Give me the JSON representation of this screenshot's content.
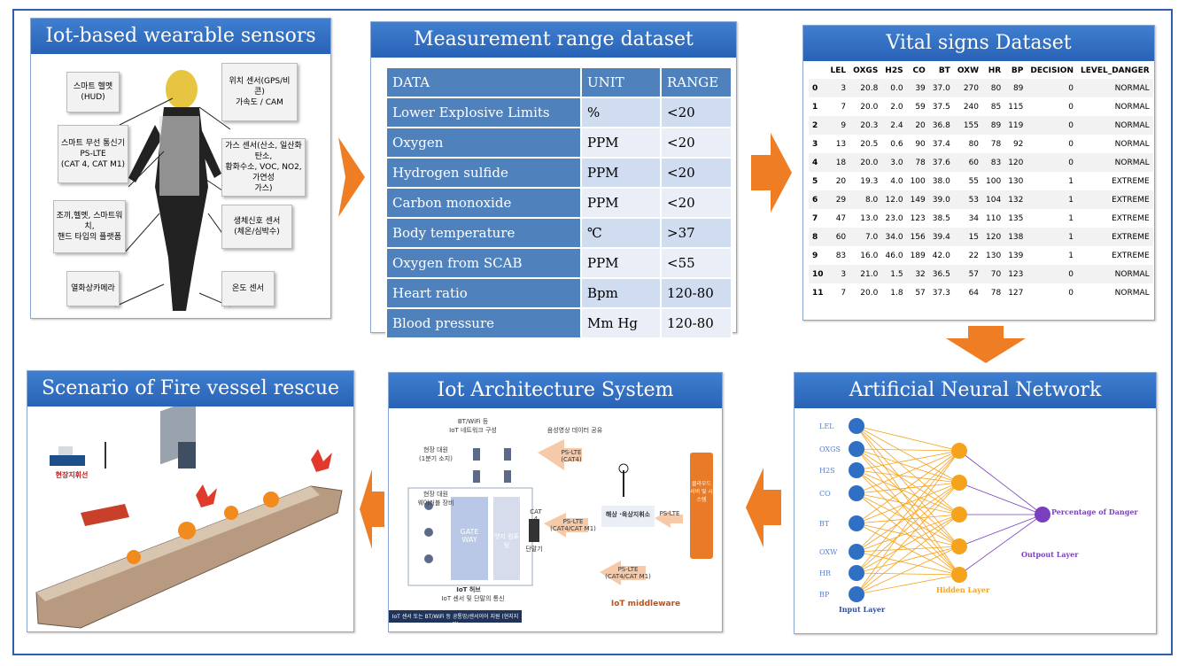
{
  "panels": {
    "wearable": {
      "title": "Iot-based wearable sensors",
      "labels": [
        "스마트 헬멧\n(HUD)",
        "스마트 무선 통신기\nPS-LTE\n(CAT 4, CAT M1)",
        "조끼,헬멧, 스마트워치,\n핸드 타입의 플랫폼",
        "열화상카메라",
        "위치 센서(GPS/비콘)\n가속도 / CAM",
        "가스 센서(산소, 일산화탄소,\n황화수소, VOC, NO2, 가연성\n가스)",
        "생체신호 센서\n(체온/심박수)",
        "온도 센서"
      ]
    },
    "measurement": {
      "title": "Measurement range dataset",
      "headers": [
        "DATA",
        "UNIT",
        "RANGE"
      ],
      "rows": [
        [
          "Lower Explosive Limits",
          "%",
          "<20"
        ],
        [
          "Oxygen",
          "PPM",
          "<20"
        ],
        [
          "Hydrogen sulfide",
          "PPM",
          "<20"
        ],
        [
          "Carbon monoxide",
          "PPM",
          "<20"
        ],
        [
          "Body temperature",
          "℃",
          ">37"
        ],
        [
          "Oxygen from SCAB",
          "PPM",
          "<55"
        ],
        [
          "Heart ratio",
          "Bpm",
          "120-80"
        ],
        [
          "Blood pressure",
          "Mm Hg",
          "120-80"
        ]
      ]
    },
    "vital": {
      "title": "Vital signs Dataset",
      "headers": [
        "",
        "LEL",
        "OXGS",
        "H2S",
        "CO",
        "BT",
        "OXW",
        "HR",
        "BP",
        "DECISION",
        "LEVEL_DANGER"
      ],
      "rows": [
        [
          "0",
          "3",
          "20.8",
          "0.0",
          "39",
          "37.0",
          "270",
          "80",
          "89",
          "0",
          "NORMAL"
        ],
        [
          "1",
          "7",
          "20.0",
          "2.0",
          "59",
          "37.5",
          "240",
          "85",
          "115",
          "0",
          "NORMAL"
        ],
        [
          "2",
          "9",
          "20.3",
          "2.4",
          "20",
          "36.8",
          "155",
          "89",
          "119",
          "0",
          "NORMAL"
        ],
        [
          "3",
          "13",
          "20.5",
          "0.6",
          "90",
          "37.4",
          "80",
          "78",
          "92",
          "0",
          "NORMAL"
        ],
        [
          "4",
          "18",
          "20.0",
          "3.0",
          "78",
          "37.6",
          "60",
          "83",
          "120",
          "0",
          "NORMAL"
        ],
        [
          "5",
          "20",
          "19.3",
          "4.0",
          "100",
          "38.0",
          "55",
          "100",
          "130",
          "1",
          "EXTREME"
        ],
        [
          "6",
          "29",
          "8.0",
          "12.0",
          "149",
          "39.0",
          "53",
          "104",
          "132",
          "1",
          "EXTREME"
        ],
        [
          "7",
          "47",
          "13.0",
          "23.0",
          "123",
          "38.5",
          "34",
          "110",
          "135",
          "1",
          "EXTREME"
        ],
        [
          "8",
          "60",
          "7.0",
          "34.0",
          "156",
          "39.4",
          "15",
          "120",
          "138",
          "1",
          "EXTREME"
        ],
        [
          "9",
          "83",
          "16.0",
          "46.0",
          "189",
          "42.0",
          "22",
          "130",
          "139",
          "1",
          "EXTREME"
        ],
        [
          "10",
          "3",
          "21.0",
          "1.5",
          "32",
          "36.5",
          "57",
          "70",
          "123",
          "0",
          "NORMAL"
        ],
        [
          "11",
          "7",
          "20.0",
          "1.8",
          "57",
          "37.3",
          "64",
          "78",
          "127",
          "0",
          "NORMAL"
        ]
      ]
    },
    "scenario": {
      "title": "Scenario of Fire vessel rescue",
      "command_label": "현장지휘선"
    },
    "architecture": {
      "title": "Iot Architecture  System",
      "labels": {
        "bt_wifi": "BT/WiFi 등\nIoT 네트워크 구성",
        "field_team": "현장 대원\n(1분기 소지)",
        "field_staff": "현장 대원\n웨어러블 장비",
        "gateway": "GATE\nWAY",
        "edge": "엣지 컴퓨팅",
        "cat4": "CAT 4",
        "phone": "단말기",
        "hub": "IoT 허브",
        "hub_sub": "IoT 센서 및 단말의 통신",
        "bottom_bar": "IoT 센서 또는 BT/WiFi 등 공통망/센서이어 지원 (현지지원)",
        "pslte_cat4": "PS-LTE\n(CAT4)",
        "pslte_catm1": "PS-LTE\n(CAT4/CAT M1)",
        "pslte_catm1_b": "PS-LTE\n(CAT4/CAT M1)",
        "video_share": "음성영상 데이터 공유",
        "sea_center": "해상 ·육상지휘소",
        "pslte": "PS-LTE",
        "cloud": "클라우드 서버 및 시스템",
        "middleware": "IoT middleware"
      }
    },
    "ann": {
      "title": "Artificial Neural Network",
      "inputs": [
        "LEL",
        "OXGS",
        "H2S",
        "CO",
        "BT",
        "OXW",
        "HR",
        "BP"
      ],
      "input_layer": "Input Layer",
      "hidden_layer": "Hidden Layer",
      "output_layer": "Outpout Layer",
      "output_label": "Percentage of Danger",
      "colors": {
        "input": "#2f6fc4",
        "hidden": "#f5a21d",
        "output": "#7a3fbf"
      }
    }
  }
}
